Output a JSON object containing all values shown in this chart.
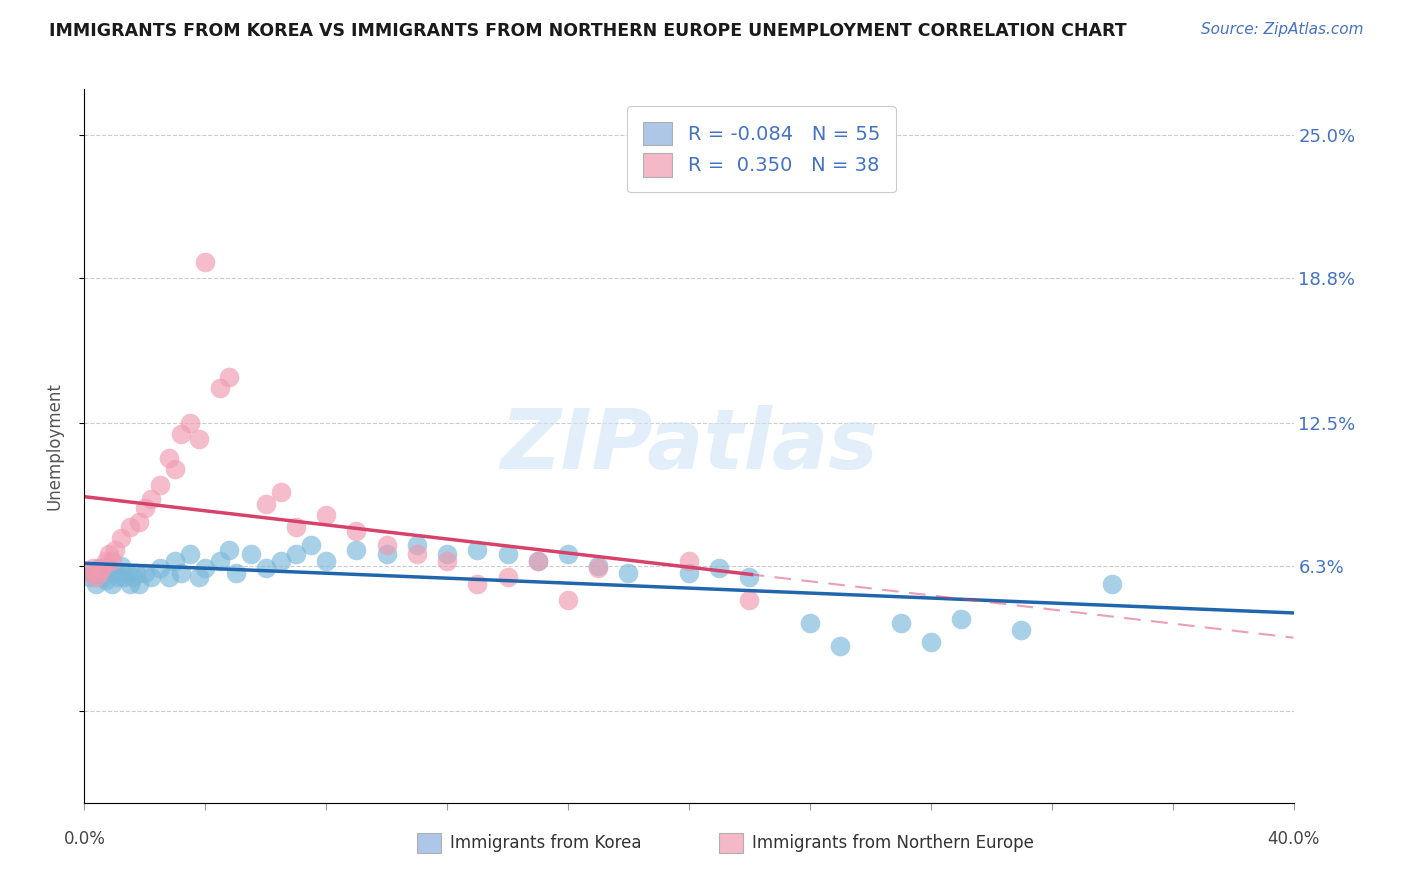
{
  "title": "IMMIGRANTS FROM KOREA VS IMMIGRANTS FROM NORTHERN EUROPE UNEMPLOYMENT CORRELATION CHART",
  "source_text": "Source: ZipAtlas.com",
  "ylabel": "Unemployment",
  "xmin": 0.0,
  "xmax": 0.4,
  "ymin": -0.04,
  "ymax": 0.27,
  "yticks": [
    0.0,
    0.063,
    0.125,
    0.188,
    0.25
  ],
  "ytick_labels": [
    "",
    "6.3%",
    "12.5%",
    "18.8%",
    "25.0%"
  ],
  "watermark": "ZIPatlas",
  "legend_entries": [
    {
      "color": "#aec6e8",
      "R": "-0.084",
      "N": "55",
      "label": "Immigrants from Korea"
    },
    {
      "color": "#f4b8c8",
      "R": "0.350",
      "N": "38",
      "label": "Immigrants from Northern Europe"
    }
  ],
  "korea_color": "#7ab8d9",
  "northern_europe_color": "#f09ab0",
  "korea_line_color": "#2166ac",
  "northern_europe_line_color": "#d6426a",
  "korea_scatter": [
    [
      0.002,
      0.058
    ],
    [
      0.003,
      0.06
    ],
    [
      0.004,
      0.055
    ],
    [
      0.005,
      0.062
    ],
    [
      0.006,
      0.058
    ],
    [
      0.007,
      0.057
    ],
    [
      0.008,
      0.062
    ],
    [
      0.009,
      0.055
    ],
    [
      0.01,
      0.06
    ],
    [
      0.011,
      0.058
    ],
    [
      0.012,
      0.063
    ],
    [
      0.013,
      0.058
    ],
    [
      0.014,
      0.06
    ],
    [
      0.015,
      0.055
    ],
    [
      0.016,
      0.058
    ],
    [
      0.017,
      0.06
    ],
    [
      0.018,
      0.055
    ],
    [
      0.02,
      0.06
    ],
    [
      0.022,
      0.058
    ],
    [
      0.025,
      0.062
    ],
    [
      0.028,
      0.058
    ],
    [
      0.03,
      0.065
    ],
    [
      0.032,
      0.06
    ],
    [
      0.035,
      0.068
    ],
    [
      0.038,
      0.058
    ],
    [
      0.04,
      0.062
    ],
    [
      0.045,
      0.065
    ],
    [
      0.048,
      0.07
    ],
    [
      0.05,
      0.06
    ],
    [
      0.055,
      0.068
    ],
    [
      0.06,
      0.062
    ],
    [
      0.065,
      0.065
    ],
    [
      0.07,
      0.068
    ],
    [
      0.075,
      0.072
    ],
    [
      0.08,
      0.065
    ],
    [
      0.09,
      0.07
    ],
    [
      0.1,
      0.068
    ],
    [
      0.11,
      0.072
    ],
    [
      0.12,
      0.068
    ],
    [
      0.13,
      0.07
    ],
    [
      0.14,
      0.068
    ],
    [
      0.15,
      0.065
    ],
    [
      0.16,
      0.068
    ],
    [
      0.17,
      0.063
    ],
    [
      0.18,
      0.06
    ],
    [
      0.2,
      0.06
    ],
    [
      0.21,
      0.062
    ],
    [
      0.22,
      0.058
    ],
    [
      0.24,
      0.038
    ],
    [
      0.25,
      0.028
    ],
    [
      0.27,
      0.038
    ],
    [
      0.28,
      0.03
    ],
    [
      0.29,
      0.04
    ],
    [
      0.31,
      0.035
    ],
    [
      0.34,
      0.055
    ]
  ],
  "northern_europe_scatter": [
    [
      0.002,
      0.06
    ],
    [
      0.003,
      0.062
    ],
    [
      0.004,
      0.058
    ],
    [
      0.005,
      0.06
    ],
    [
      0.006,
      0.062
    ],
    [
      0.007,
      0.065
    ],
    [
      0.008,
      0.068
    ],
    [
      0.009,
      0.065
    ],
    [
      0.01,
      0.07
    ],
    [
      0.012,
      0.075
    ],
    [
      0.015,
      0.08
    ],
    [
      0.018,
      0.082
    ],
    [
      0.02,
      0.088
    ],
    [
      0.022,
      0.092
    ],
    [
      0.025,
      0.098
    ],
    [
      0.028,
      0.11
    ],
    [
      0.03,
      0.105
    ],
    [
      0.032,
      0.12
    ],
    [
      0.035,
      0.125
    ],
    [
      0.038,
      0.118
    ],
    [
      0.04,
      0.195
    ],
    [
      0.045,
      0.14
    ],
    [
      0.048,
      0.145
    ],
    [
      0.06,
      0.09
    ],
    [
      0.065,
      0.095
    ],
    [
      0.07,
      0.08
    ],
    [
      0.08,
      0.085
    ],
    [
      0.09,
      0.078
    ],
    [
      0.1,
      0.072
    ],
    [
      0.11,
      0.068
    ],
    [
      0.12,
      0.065
    ],
    [
      0.13,
      0.055
    ],
    [
      0.14,
      0.058
    ],
    [
      0.15,
      0.065
    ],
    [
      0.16,
      0.048
    ],
    [
      0.17,
      0.062
    ],
    [
      0.2,
      0.065
    ],
    [
      0.22,
      0.048
    ]
  ]
}
